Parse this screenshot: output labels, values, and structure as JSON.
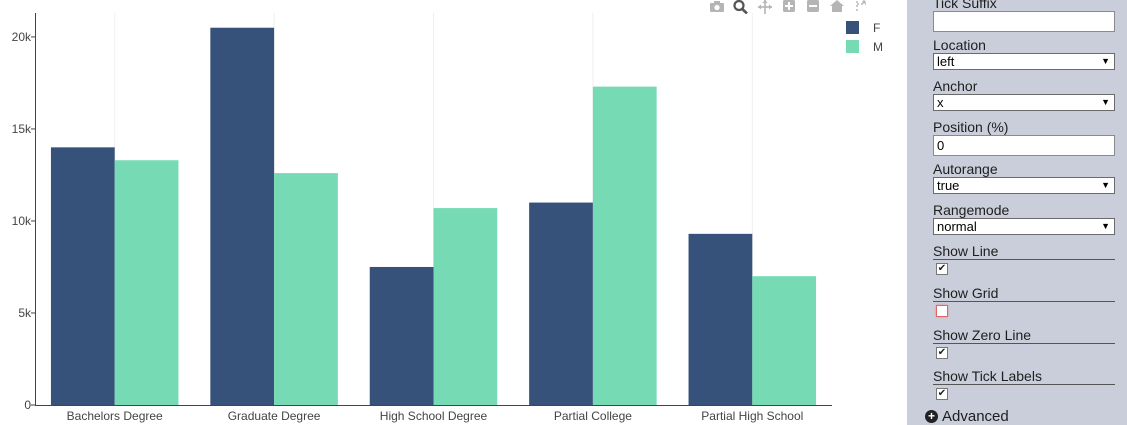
{
  "modebar": {
    "icons": [
      "camera-icon",
      "zoom-icon",
      "pan-icon",
      "zoom-in-icon",
      "zoom-out-icon",
      "home-icon",
      "spike-icon"
    ]
  },
  "chart_data": {
    "type": "bar",
    "categories": [
      "Bachelors Degree",
      "Graduate Degree",
      "High School Degree",
      "Partial College",
      "Partial High School"
    ],
    "series": [
      {
        "name": "F",
        "color": "#36517a",
        "values": [
          14000,
          20500,
          7500,
          11000,
          9300
        ]
      },
      {
        "name": "M",
        "color": "#76dbb4",
        "values": [
          13300,
          12600,
          10700,
          17300,
          7000
        ]
      }
    ],
    "ylim": [
      0,
      21300
    ],
    "yticks": [
      0,
      5000,
      10000,
      15000,
      20000
    ],
    "ytick_labels": [
      "0",
      "5k",
      "10k",
      "15k",
      "20k"
    ],
    "title": "",
    "xlabel": "",
    "ylabel": "",
    "grid": {
      "vertical": true,
      "horizontal": false
    },
    "legend_position": "top-right"
  },
  "panel": {
    "tick_suffix": {
      "label": "Tick Suffix",
      "value": ""
    },
    "location": {
      "label": "Location",
      "value": "left"
    },
    "anchor": {
      "label": "Anchor",
      "value": "x"
    },
    "position": {
      "label": "Position (%)",
      "value": "0"
    },
    "autorange": {
      "label": "Autorange",
      "value": "true"
    },
    "rangemode": {
      "label": "Rangemode",
      "value": "normal"
    },
    "show_line": {
      "label": "Show Line",
      "checked": true,
      "mark": "✔"
    },
    "show_grid": {
      "label": "Show Grid",
      "checked": false,
      "mark": ""
    },
    "show_zero_line": {
      "label": "Show Zero Line",
      "checked": true,
      "mark": "✔"
    },
    "show_tick_labels": {
      "label": "Show Tick Labels",
      "checked": true,
      "mark": "✔"
    },
    "advanced": {
      "label": "Advanced",
      "icon": "plus-circle-icon"
    }
  }
}
